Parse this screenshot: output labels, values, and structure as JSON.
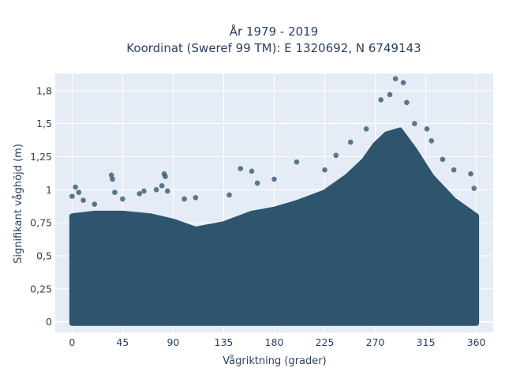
{
  "chart_data": {
    "type": "scatter",
    "title_line1": "År 1979 - 2019",
    "title_line2": "Koordinat (Sweref 99 TM): E 1320692, N 6749143",
    "xlabel": "Vågriktning (grader)",
    "ylabel": "Signifikant våghöjd (m)",
    "xlim": [
      -15,
      375
    ],
    "ylim": [
      -0.08,
      1.88
    ],
    "x_ticks": [
      0,
      45,
      90,
      135,
      180,
      225,
      270,
      315,
      360
    ],
    "x_tick_labels": [
      "0",
      "45",
      "90",
      "135",
      "180",
      "225",
      "270",
      "315",
      "360"
    ],
    "y_ticks": [
      0,
      0.25,
      0.5,
      0.75,
      1,
      1.25,
      1.5,
      1.75
    ],
    "y_tick_labels": [
      "0",
      "0,25",
      "0,5",
      "0,75",
      "1",
      "1,25",
      "1,5",
      "1,8"
    ],
    "grid": true,
    "marker_color": "#2f556e",
    "background_color": "#e5ecf6",
    "points": [
      {
        "x": 0,
        "y": 0.95
      },
      {
        "x": 3,
        "y": 1.02
      },
      {
        "x": 6,
        "y": 0.98
      },
      {
        "x": 10,
        "y": 0.92
      },
      {
        "x": 20,
        "y": 0.89
      },
      {
        "x": 35,
        "y": 1.11
      },
      {
        "x": 36,
        "y": 1.08
      },
      {
        "x": 38,
        "y": 0.98
      },
      {
        "x": 45,
        "y": 0.93
      },
      {
        "x": 60,
        "y": 0.97
      },
      {
        "x": 64,
        "y": 0.99
      },
      {
        "x": 75,
        "y": 1.0
      },
      {
        "x": 80,
        "y": 1.03
      },
      {
        "x": 82,
        "y": 1.12
      },
      {
        "x": 83,
        "y": 1.1
      },
      {
        "x": 85,
        "y": 0.99
      },
      {
        "x": 100,
        "y": 0.93
      },
      {
        "x": 110,
        "y": 0.94
      },
      {
        "x": 140,
        "y": 0.96
      },
      {
        "x": 150,
        "y": 1.16
      },
      {
        "x": 160,
        "y": 1.14
      },
      {
        "x": 165,
        "y": 1.05
      },
      {
        "x": 180,
        "y": 1.08
      },
      {
        "x": 200,
        "y": 1.21
      },
      {
        "x": 225,
        "y": 1.15
      },
      {
        "x": 235,
        "y": 1.26
      },
      {
        "x": 248,
        "y": 1.36
      },
      {
        "x": 262,
        "y": 1.46
      },
      {
        "x": 275,
        "y": 1.68
      },
      {
        "x": 283,
        "y": 1.72
      },
      {
        "x": 288,
        "y": 1.84
      },
      {
        "x": 295,
        "y": 1.81
      },
      {
        "x": 298,
        "y": 1.66
      },
      {
        "x": 305,
        "y": 1.5
      },
      {
        "x": 316,
        "y": 1.46
      },
      {
        "x": 320,
        "y": 1.37
      },
      {
        "x": 330,
        "y": 1.23
      },
      {
        "x": 340,
        "y": 1.15
      },
      {
        "x": 355,
        "y": 1.12
      },
      {
        "x": 358,
        "y": 1.01
      }
    ],
    "upper_envelope": [
      {
        "x": 0,
        "y": 0.8
      },
      {
        "x": 20,
        "y": 0.82
      },
      {
        "x": 45,
        "y": 0.82
      },
      {
        "x": 70,
        "y": 0.8
      },
      {
        "x": 90,
        "y": 0.76
      },
      {
        "x": 110,
        "y": 0.7
      },
      {
        "x": 135,
        "y": 0.74
      },
      {
        "x": 160,
        "y": 0.82
      },
      {
        "x": 180,
        "y": 0.85
      },
      {
        "x": 200,
        "y": 0.9
      },
      {
        "x": 225,
        "y": 0.98
      },
      {
        "x": 245,
        "y": 1.1
      },
      {
        "x": 260,
        "y": 1.22
      },
      {
        "x": 270,
        "y": 1.34
      },
      {
        "x": 280,
        "y": 1.42
      },
      {
        "x": 292,
        "y": 1.45
      },
      {
        "x": 305,
        "y": 1.3
      },
      {
        "x": 320,
        "y": 1.1
      },
      {
        "x": 340,
        "y": 0.92
      },
      {
        "x": 360,
        "y": 0.8
      }
    ],
    "lower_bound": 0.0
  }
}
